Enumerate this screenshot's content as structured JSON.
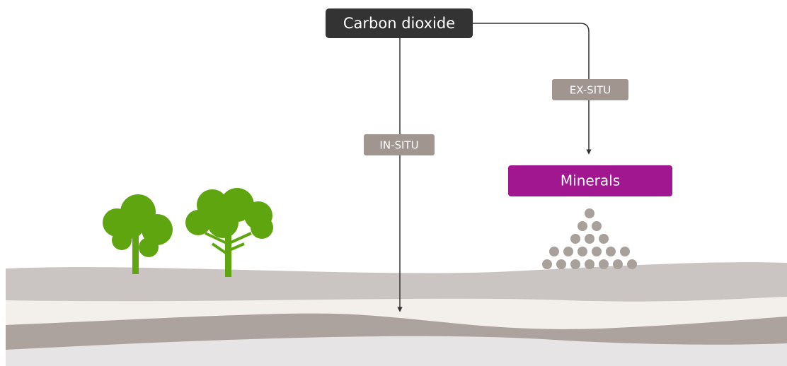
{
  "nodes": [
    {
      "label": "Carbon dioxide"
    },
    {
      "label": "Minerals"
    }
  ],
  "edges": [
    {
      "label": "IN-SITU"
    },
    {
      "label": "EX-SITU"
    }
  ]
}
